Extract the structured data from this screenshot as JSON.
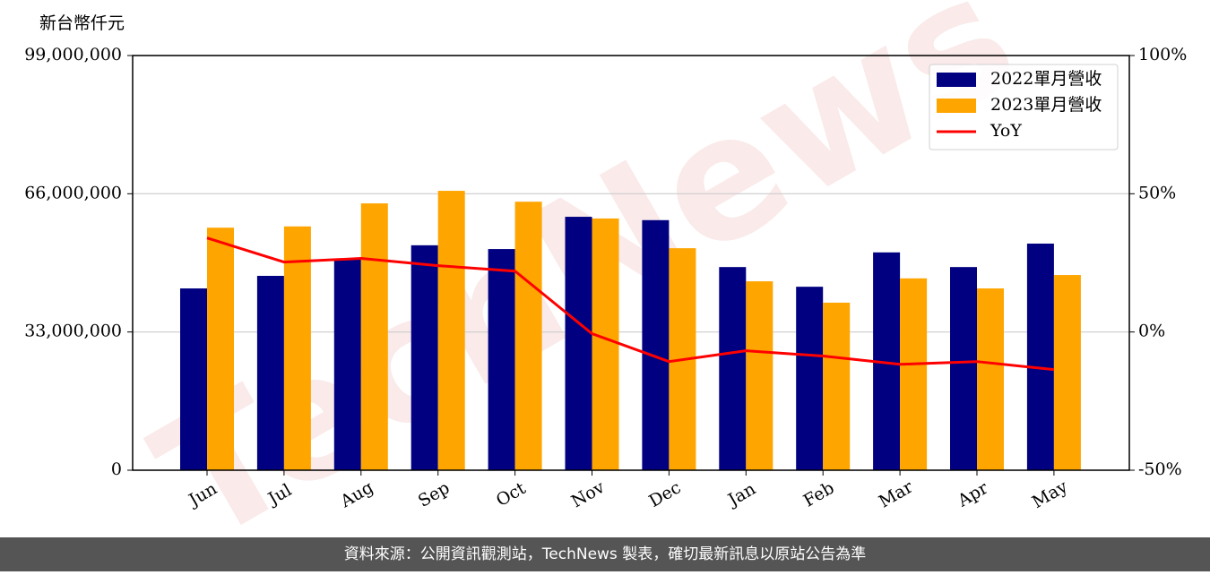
{
  "watermark": "TechNews",
  "footer": "資料來源：公開資訊觀測站，TechNews 製表，確切最新訊息以原站公告為準",
  "chart_data": {
    "type": "bar",
    "y_label": "新台幣仟元",
    "categories": [
      "Jun",
      "Jul",
      "Aug",
      "Sep",
      "Oct",
      "Nov",
      "Dec",
      "Jan",
      "Feb",
      "Mar",
      "Apr",
      "May"
    ],
    "series": [
      {
        "name": "2022單月營收",
        "color": "#000080",
        "values": [
          43400000,
          46400000,
          50500000,
          53700000,
          52800000,
          60500000,
          59700000,
          48500000,
          43800000,
          52000000,
          48500000,
          54100000
        ]
      },
      {
        "name": "2023單月營收",
        "color": "#ffa500",
        "values": [
          57900000,
          58200000,
          63700000,
          66700000,
          64100000,
          60100000,
          53000000,
          45100000,
          40000000,
          45800000,
          43400000,
          46600000
        ]
      },
      {
        "name": "YoY",
        "color": "#ff0000",
        "type": "line",
        "axis": "y2",
        "values": [
          34.0,
          25.3,
          26.6,
          24.0,
          22.0,
          -0.6,
          -10.7,
          -6.8,
          -8.7,
          -11.7,
          -10.7,
          -13.6
        ]
      }
    ],
    "ylim": [
      0,
      99000000
    ],
    "yticks": [
      0,
      {
        "value": 33000000,
        "label": "33,000,000"
      },
      {
        "value": 66000000,
        "label": "66,000,000"
      },
      {
        "value": 99000000,
        "label": "99,000,000"
      }
    ],
    "y2lim": [
      -50,
      100
    ],
    "y2ticks": [
      {
        "value": -50,
        "label": "-50%"
      },
      {
        "value": 0,
        "label": "0%"
      },
      {
        "value": 50,
        "label": "50%"
      },
      {
        "value": 100,
        "label": "100%"
      }
    ],
    "grid": true,
    "legend": "upper right"
  }
}
